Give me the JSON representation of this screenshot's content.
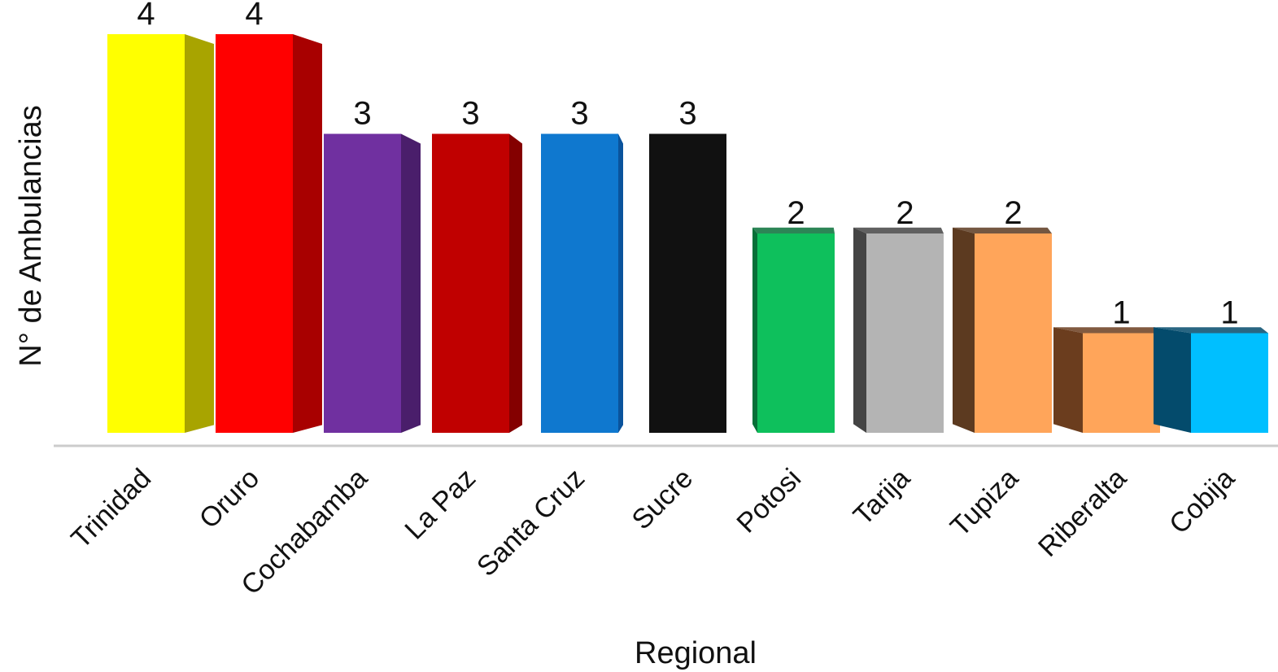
{
  "chart_data": {
    "type": "bar",
    "title": "",
    "xlabel": "Regional",
    "ylabel": "N° de Ambulancias",
    "categories": [
      "Trinidad",
      "Oruro",
      "Cochabamba",
      "La Paz",
      "Santa Cruz",
      "Sucre",
      "Potosi",
      "Tarija",
      "Tupiza",
      "Riberalta",
      "Cobija"
    ],
    "values": [
      4,
      4,
      3,
      3,
      3,
      3,
      2,
      2,
      2,
      1,
      1
    ],
    "data_labels": [
      "4",
      "4",
      "3",
      "3",
      "3",
      "3",
      "2",
      "2",
      "2",
      "1",
      "1"
    ],
    "ylim": [
      0,
      4
    ],
    "grid": false,
    "legend": "none",
    "style": "3d-perspective-columns",
    "colors": [
      "#ffff00",
      "#ff0000",
      "#7030a0",
      "#c00000",
      "#0f78cf",
      "#111111",
      "#0ec05c",
      "#b4b4b4",
      "#ffa55a",
      "#ffa55a",
      "#00bfff"
    ],
    "side_colors": [
      "#a8a400",
      "#a80000",
      "#4a1e6b",
      "#840000",
      "#0a539c",
      "#000000",
      "#077038",
      "#444444",
      "#5c3a20",
      "#6b3d1e",
      "#044b6c"
    ],
    "axis_color": "#cccccc"
  }
}
